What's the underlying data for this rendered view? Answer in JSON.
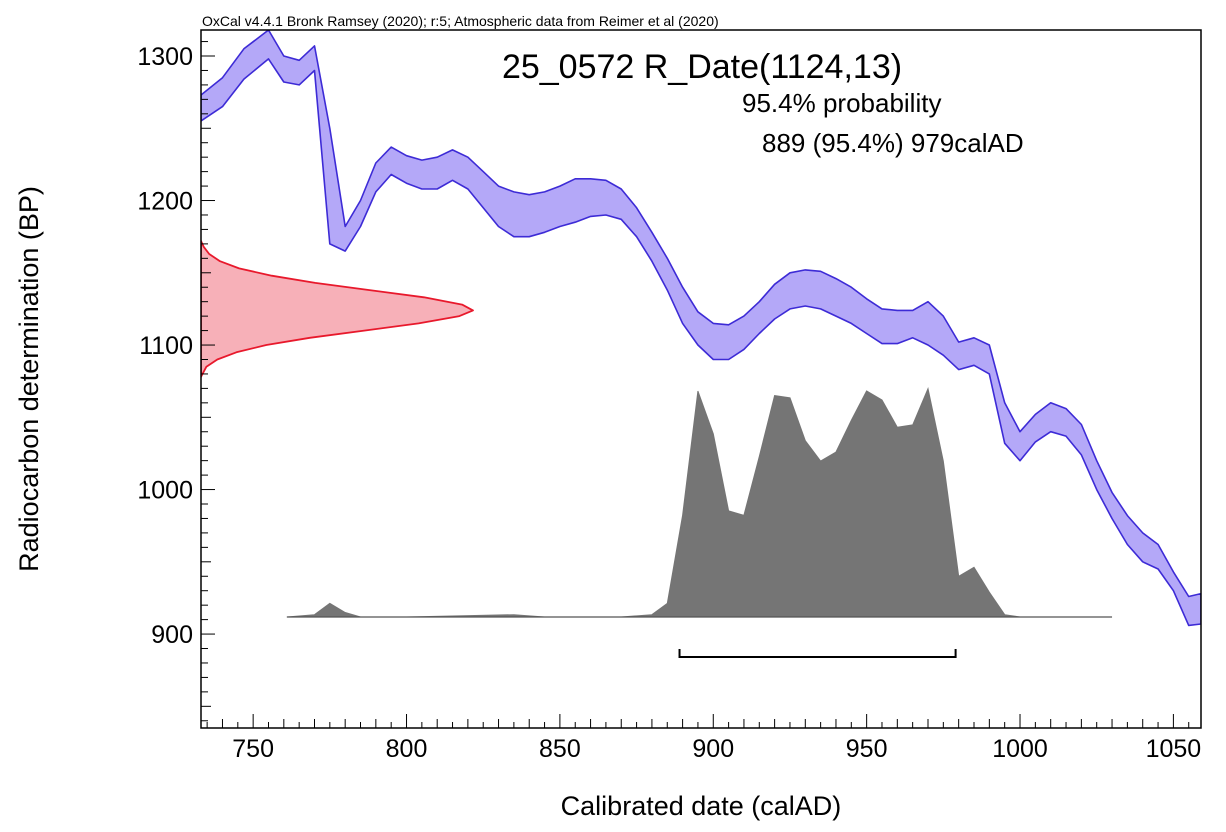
{
  "chart_data": {
    "type": "area",
    "source_note": "OxCal v4.4.1 Bronk Ramsey (2020); r:5; Atmospheric data from Reimer et al (2020)",
    "title": "25_0572 R_Date(1124,13)",
    "annotations": [
      "95.4% probability",
      "889 (95.4%) 979calAD"
    ],
    "xlabel": "Calibrated date (calAD)",
    "ylabel": "Radiocarbon determination (BP)",
    "xlim": [
      733,
      1059
    ],
    "ylim": [
      835,
      1318
    ],
    "x_ticks": [
      750,
      800,
      850,
      900,
      950,
      1000,
      1050
    ],
    "y_ticks": [
      900,
      1000,
      1100,
      1200,
      1300
    ],
    "colors": {
      "calibration_fill": "#b4a8f8",
      "calibration_stroke": "#3d2bd6",
      "measurement_fill": "#f7b0b8",
      "measurement_stroke": "#e8192c",
      "posterior_fill": "#757575",
      "range_bar": "#000000"
    },
    "calibration_curve": {
      "x": [
        733,
        740,
        747,
        755,
        760,
        765,
        770,
        775,
        780,
        785,
        790,
        795,
        800,
        805,
        810,
        815,
        820,
        825,
        830,
        835,
        840,
        845,
        850,
        855,
        860,
        865,
        870,
        875,
        880,
        885,
        890,
        895,
        900,
        905,
        910,
        915,
        920,
        925,
        930,
        935,
        940,
        945,
        950,
        955,
        960,
        965,
        970,
        975,
        980,
        985,
        990,
        995,
        1000,
        1005,
        1010,
        1015,
        1020,
        1025,
        1030,
        1035,
        1040,
        1045,
        1050,
        1055,
        1059
      ],
      "upper": [
        1273,
        1285,
        1305,
        1318,
        1300,
        1297,
        1307,
        1250,
        1182,
        1200,
        1226,
        1237,
        1231,
        1228,
        1230,
        1235,
        1230,
        1220,
        1210,
        1206,
        1204,
        1206,
        1210,
        1215,
        1215,
        1214,
        1208,
        1195,
        1178,
        1160,
        1140,
        1123,
        1115,
        1114,
        1120,
        1130,
        1142,
        1150,
        1152,
        1151,
        1146,
        1140,
        1132,
        1125,
        1124,
        1124,
        1130,
        1120,
        1102,
        1105,
        1100,
        1060,
        1040,
        1052,
        1060,
        1056,
        1045,
        1020,
        998,
        982,
        970,
        962,
        943,
        926,
        928
      ],
      "lower": [
        1255,
        1265,
        1284,
        1298,
        1282,
        1280,
        1290,
        1170,
        1165,
        1182,
        1206,
        1218,
        1212,
        1208,
        1208,
        1214,
        1208,
        1195,
        1182,
        1175,
        1175,
        1178,
        1182,
        1185,
        1189,
        1190,
        1187,
        1175,
        1158,
        1138,
        1115,
        1100,
        1090,
        1090,
        1097,
        1108,
        1118,
        1125,
        1127,
        1125,
        1120,
        1115,
        1108,
        1101,
        1101,
        1105,
        1100,
        1093,
        1083,
        1086,
        1080,
        1032,
        1020,
        1033,
        1040,
        1037,
        1024,
        1000,
        980,
        962,
        950,
        945,
        930,
        906,
        907
      ]
    },
    "measurement_distribution": {
      "bp": [
        1078,
        1085,
        1090,
        1095,
        1100,
        1105,
        1110,
        1115,
        1120,
        1124,
        1128,
        1133,
        1138,
        1143,
        1148,
        1153,
        1158,
        1163,
        1168,
        1172
      ],
      "relative_density": [
        0.0,
        0.02,
        0.06,
        0.13,
        0.24,
        0.4,
        0.6,
        0.8,
        0.95,
        1.0,
        0.96,
        0.82,
        0.62,
        0.42,
        0.26,
        0.14,
        0.07,
        0.03,
        0.01,
        0.0
      ]
    },
    "calibrated_distribution": {
      "x": [
        761,
        770,
        775,
        780,
        785,
        800,
        835,
        845,
        870,
        880,
        885,
        890,
        895,
        900,
        905,
        910,
        915,
        920,
        925,
        930,
        935,
        940,
        945,
        950,
        955,
        960,
        965,
        970,
        975,
        980,
        985,
        990,
        995,
        1000,
        1030
      ],
      "relative_density": [
        0.0,
        0.01,
        0.06,
        0.02,
        0.0,
        0.0,
        0.01,
        0.0,
        0.0,
        0.01,
        0.06,
        0.45,
        1.0,
        0.81,
        0.47,
        0.45,
        0.71,
        0.98,
        0.97,
        0.78,
        0.69,
        0.73,
        0.87,
        1.0,
        0.96,
        0.84,
        0.85,
        1.01,
        0.69,
        0.18,
        0.22,
        0.11,
        0.01,
        0.0,
        0.0
      ]
    },
    "range_95_4": [
      889,
      979
    ]
  }
}
